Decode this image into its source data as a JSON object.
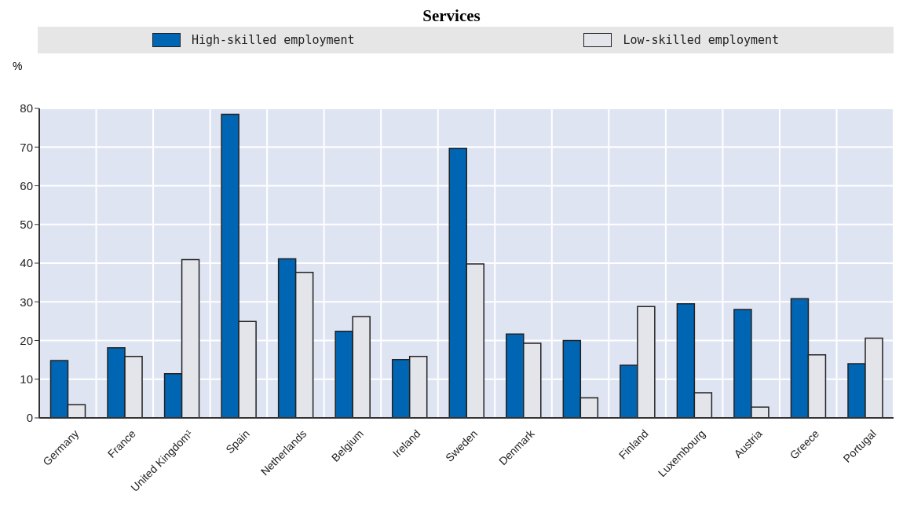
{
  "chart_data": {
    "type": "bar",
    "title": "Services",
    "ylabel": "%",
    "categories": [
      "Germany",
      "France",
      "United Kingdom¹",
      "Spain",
      "Netherlands",
      "Belgium",
      "Ireland",
      "Sweden",
      "Denmark",
      null,
      "Finland",
      "Luxembourg",
      "Austria",
      "Greece",
      "Portugal"
    ],
    "series": [
      {
        "name": "High-skilled employment",
        "color": "#0066b3",
        "values": [
          14.8,
          18.1,
          11.4,
          78.5,
          41.1,
          22.4,
          15.1,
          69.7,
          21.7,
          20.0,
          13.6,
          29.5,
          28.0,
          30.8,
          14.0
        ]
      },
      {
        "name": "Low-skilled employment",
        "color": "#e3e5ea",
        "values": [
          3.4,
          15.9,
          40.9,
          24.9,
          37.6,
          26.2,
          15.9,
          39.8,
          19.3,
          5.2,
          28.8,
          6.5,
          2.8,
          16.3,
          20.6
        ]
      }
    ],
    "ylim": [
      0,
      80
    ],
    "yticks": [
      0,
      10,
      20,
      30,
      40,
      50,
      60,
      70,
      80
    ],
    "grid": true,
    "legend": "top"
  }
}
